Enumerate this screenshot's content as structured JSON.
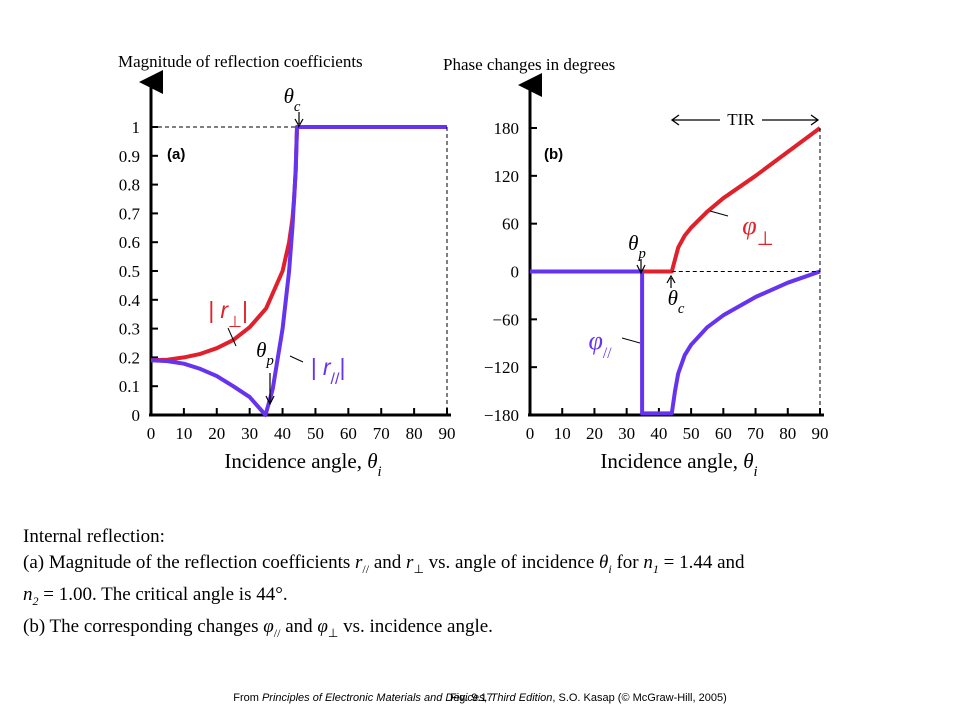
{
  "chart_data": [
    {
      "type": "line",
      "panel": "(a)",
      "title": "Magnitude of reflection coefficients",
      "xlabel": "Incidence angle, θi",
      "xlim": [
        0,
        90
      ],
      "ylim": [
        0,
        1
      ],
      "xticks": [
        "0",
        "10",
        "20",
        "30",
        "40",
        "50",
        "60",
        "70",
        "80",
        "90"
      ],
      "yticks": [
        "0",
        "0.1",
        "0.2",
        "0.3",
        "0.4",
        "0.5",
        "0.6",
        "0.7",
        "0.8",
        "0.9",
        "1"
      ],
      "grid": false,
      "series": [
        {
          "name": "| r⊥ |",
          "color": "#e0202a",
          "x": [
            0,
            5,
            10,
            15,
            20,
            25,
            30,
            35,
            40,
            42,
            43,
            43.5,
            44,
            44.4,
            50,
            60,
            70,
            80,
            90
          ],
          "y": [
            0.19,
            0.192,
            0.2,
            0.212,
            0.232,
            0.26,
            0.305,
            0.37,
            0.5,
            0.6,
            0.68,
            0.75,
            0.85,
            1.0,
            1.0,
            1.0,
            1.0,
            1.0,
            1.0
          ]
        },
        {
          "name": "| r// |",
          "color": "#6633ee",
          "x": [
            0,
            5,
            10,
            15,
            20,
            25,
            30,
            34.8,
            37,
            40,
            42,
            43,
            44,
            44.4,
            50,
            60,
            70,
            80,
            90
          ],
          "y": [
            0.19,
            0.187,
            0.178,
            0.16,
            0.135,
            0.1,
            0.062,
            0.0,
            0.09,
            0.3,
            0.5,
            0.65,
            0.85,
            1.0,
            1.0,
            1.0,
            1.0,
            1.0,
            1.0
          ]
        }
      ],
      "annotations": [
        {
          "text": "θc",
          "x": 44
        },
        {
          "text": "θp",
          "x": 34.8
        }
      ]
    },
    {
      "type": "line",
      "panel": "(b)",
      "title": "Phase changes in degrees",
      "xlabel": "Incidence angle, θi",
      "xlim": [
        0,
        90
      ],
      "ylim": [
        -180,
        180
      ],
      "xticks": [
        "0",
        "10",
        "20",
        "30",
        "40",
        "50",
        "60",
        "70",
        "80",
        "90"
      ],
      "yticks": [
        "180",
        "120",
        "60",
        "0",
        "−60",
        "−120",
        "−180"
      ],
      "grid": false,
      "series": [
        {
          "name": "φ⊥",
          "color": "#e0202a",
          "x": [
            0,
            10,
            20,
            30,
            40,
            44,
            45,
            46,
            48,
            50,
            55,
            60,
            70,
            80,
            90
          ],
          "y": [
            0,
            0,
            0,
            0,
            0,
            0,
            15,
            30,
            45,
            55,
            75,
            92,
            120,
            150,
            180
          ]
        },
        {
          "name": "φ//",
          "color": "#6633ee",
          "x": [
            0,
            10,
            20,
            30,
            34.8,
            34.8,
            40,
            44,
            44,
            45,
            46,
            48,
            50,
            55,
            60,
            70,
            80,
            90
          ],
          "y": [
            0,
            0,
            0,
            0,
            0,
            -178,
            -178,
            -178,
            -178,
            -150,
            -128,
            -105,
            -92,
            -70,
            -55,
            -32,
            -14,
            0
          ]
        }
      ],
      "annotations": [
        {
          "text": "TIR"
        },
        {
          "text": "θp",
          "x": 34.8
        },
        {
          "text": "θc",
          "x": 44
        }
      ]
    }
  ],
  "figure": {
    "panel_a_label": "(a)",
    "panel_b_label": "(b)",
    "theta": "θ",
    "sub_c": "c",
    "sub_p": "p",
    "sub_i": "i",
    "r_bar_open": "| r",
    "r_bar_close": "|",
    "perp": "⊥",
    "par": "//",
    "phi": "φ",
    "tir": "TIR",
    "xlabel_text": "Incidence angle, "
  },
  "caption": {
    "line1": "Internal reflection:",
    "line2_parts": [
      "(a) Magnitude of the reflection coefficients ",
      "r",
      "//",
      " and ",
      "r",
      "⊥",
      " vs. angle of incidence ",
      "θ",
      "i",
      " for ",
      "n",
      "1",
      " = 1.44 and"
    ],
    "line3_parts": [
      "n",
      "2",
      " = 1.00. The critical angle is 44°."
    ],
    "line4_parts": [
      "(b) The corresponding changes ",
      "φ",
      "//",
      " and ",
      "φ",
      "⊥",
      " vs. incidence angle."
    ]
  },
  "footer": {
    "from": "From ",
    "book": "Principles of Electronic Materials and Devices, Third Edition",
    "rest": ", S.O. Kasap (© McGraw-Hill, 2005)",
    "fig_no": "Fig. 9.17"
  }
}
